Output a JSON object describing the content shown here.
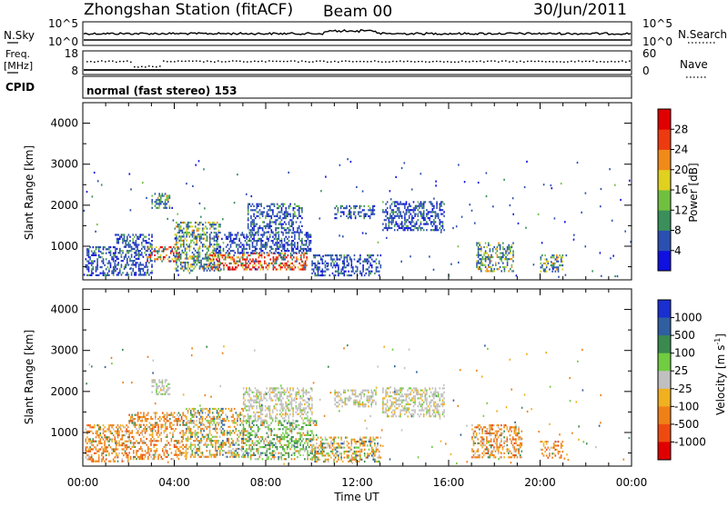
{
  "header": {
    "title": "Zhongshan Station (fitACF)",
    "beam": "Beam 00",
    "date": "30/Jun/2011"
  },
  "nsky_panel": {
    "left_label": "N.Sky",
    "left_ticks": [
      "10^5",
      "10^0"
    ],
    "right_label": "N.Search",
    "right_ticks": [
      "10^5",
      "10^0"
    ]
  },
  "freq_panel": {
    "left_label_1": "Freq.",
    "left_label_2": "[MHz]",
    "left_ticks": [
      "18",
      "8"
    ],
    "right_label": "Nave",
    "right_ticks": [
      "60",
      "0"
    ]
  },
  "cpid": {
    "label": "CPID",
    "value": "normal (fast stereo) 153"
  },
  "axes": {
    "ylabel": "Slant Range [km]",
    "xlabel": "Time UT",
    "x_ticks": [
      "00:00",
      "04:00",
      "08:00",
      "12:00",
      "16:00",
      "20:00",
      "00:00"
    ],
    "y_ticks": [
      "1000",
      "2000",
      "3000",
      "4000"
    ]
  },
  "power_colorbar": {
    "label": "Power [dB]",
    "ticks": [
      "4",
      "8",
      "12",
      "16",
      "20",
      "24",
      "28"
    ],
    "colors": [
      "#1010e0",
      "#2a4fb0",
      "#3a8f5a",
      "#70c040",
      "#e0d020",
      "#f08a18",
      "#ee3a10",
      "#e00000"
    ]
  },
  "velocity_colorbar": {
    "label": "Velocity [m s",
    "superscript": "-1",
    "label_end": "]",
    "ticks": [
      "1000",
      "500",
      "100",
      "25",
      "-25",
      "-100",
      "-500",
      "-1000"
    ],
    "colors": [
      "#1a2fd0",
      "#2f5fa0",
      "#3a8a50",
      "#70cc40",
      "#c0c0c0",
      "#f0b020",
      "#f08018",
      "#ee4a10",
      "#e00000"
    ]
  },
  "chart_data": [
    {
      "type": "heatmap",
      "name": "Power",
      "x_range_hours": [
        0,
        24
      ],
      "y_range_km": [
        180,
        4500
      ],
      "clusters": [
        {
          "t0": 0.1,
          "t1": 1.4,
          "r0": 300,
          "r1": 1000,
          "level": "low"
        },
        {
          "t0": 1.4,
          "t1": 3.0,
          "r0": 300,
          "r1": 1300,
          "level": "low"
        },
        {
          "t0": 2.8,
          "t1": 4.2,
          "r0": 650,
          "r1": 1000,
          "level": "high"
        },
        {
          "t0": 3.0,
          "t1": 3.8,
          "r0": 1950,
          "r1": 2300,
          "level": "mid"
        },
        {
          "t0": 4.0,
          "t1": 6.0,
          "r0": 400,
          "r1": 1600,
          "level": "mid"
        },
        {
          "t0": 5.5,
          "t1": 9.8,
          "r0": 450,
          "r1": 850,
          "level": "high"
        },
        {
          "t0": 5.8,
          "t1": 10.0,
          "r0": 850,
          "r1": 1350,
          "level": "low"
        },
        {
          "t0": 7.2,
          "t1": 9.6,
          "r0": 1350,
          "r1": 2050,
          "level": "low"
        },
        {
          "t0": 10.0,
          "t1": 13.0,
          "r0": 300,
          "r1": 800,
          "level": "low"
        },
        {
          "t0": 11.0,
          "t1": 12.8,
          "r0": 1700,
          "r1": 2000,
          "level": "low"
        },
        {
          "t0": 13.1,
          "t1": 15.8,
          "r0": 1400,
          "r1": 2100,
          "level": "low"
        },
        {
          "t0": 17.2,
          "t1": 18.8,
          "r0": 400,
          "r1": 1100,
          "level": "mid"
        },
        {
          "t0": 20.0,
          "t1": 21.0,
          "r0": 400,
          "r1": 800,
          "level": "mid"
        }
      ]
    },
    {
      "type": "heatmap",
      "name": "Velocity",
      "x_range_hours": [
        0,
        24
      ],
      "y_range_km": [
        180,
        4500
      ],
      "clusters": [
        {
          "t0": 0.1,
          "t1": 2.0,
          "r0": 300,
          "r1": 1200,
          "level": "neg"
        },
        {
          "t0": 2.0,
          "t1": 4.5,
          "r0": 350,
          "r1": 1500,
          "level": "neg"
        },
        {
          "t0": 3.0,
          "t1": 3.8,
          "r0": 1950,
          "r1": 2300,
          "level": "zero"
        },
        {
          "t0": 4.5,
          "t1": 7.0,
          "r0": 400,
          "r1": 1600,
          "level": "mixed"
        },
        {
          "t0": 7.0,
          "t1": 10.2,
          "r0": 350,
          "r1": 1300,
          "level": "pos"
        },
        {
          "t0": 7.0,
          "t1": 10.0,
          "r0": 1300,
          "r1": 2100,
          "level": "zero"
        },
        {
          "t0": 10.0,
          "t1": 13.0,
          "r0": 300,
          "r1": 900,
          "level": "mixed"
        },
        {
          "t0": 11.0,
          "t1": 12.8,
          "r0": 1650,
          "r1": 2050,
          "level": "zero"
        },
        {
          "t0": 13.1,
          "t1": 15.8,
          "r0": 1400,
          "r1": 2100,
          "level": "zero"
        },
        {
          "t0": 17.0,
          "t1": 19.2,
          "r0": 400,
          "r1": 1200,
          "level": "neg"
        },
        {
          "t0": 20.0,
          "t1": 21.0,
          "r0": 400,
          "r1": 800,
          "level": "neg"
        }
      ]
    }
  ]
}
